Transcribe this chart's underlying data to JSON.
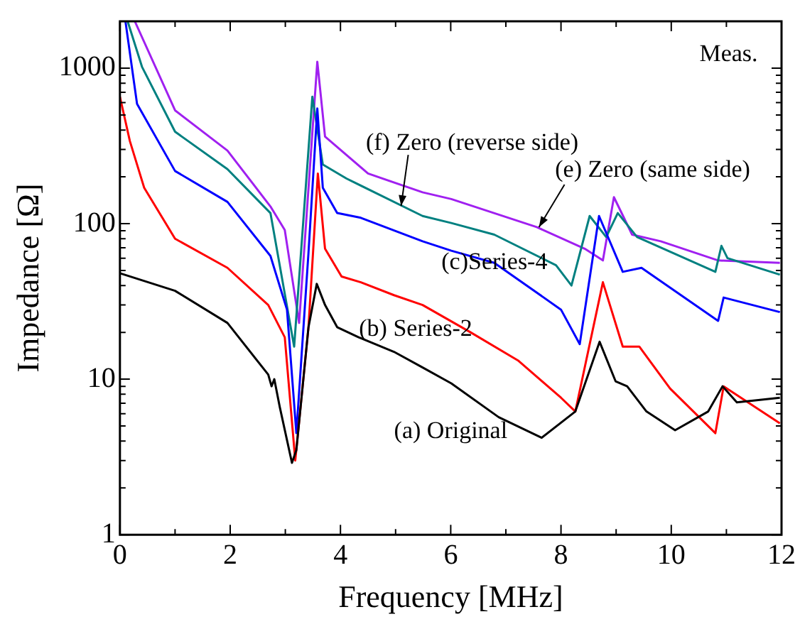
{
  "chart_data": {
    "type": "line",
    "xlabel": "Frequency [MHz]",
    "ylabel": "Impedance [Ω]",
    "log": "y",
    "grid": false,
    "legend": false,
    "marker": "none",
    "line_style": "solid",
    "xlim": [
      0,
      12
    ],
    "xticks": [
      0,
      {
        "value": 1,
        "label": null
      },
      2,
      {
        "value": 3,
        "label": null
      },
      4,
      {
        "value": 5,
        "label": null
      },
      6,
      {
        "value": 7,
        "label": null
      },
      8,
      {
        "value": 9,
        "label": null
      },
      10,
      {
        "value": 11,
        "label": null
      },
      12
    ],
    "ylim": [
      1,
      2000
    ],
    "yticks": [
      1,
      {
        "value": 2,
        "label": null
      },
      {
        "value": 3,
        "label": null
      },
      {
        "value": 4,
        "label": null
      },
      {
        "value": 5,
        "label": null
      },
      {
        "value": 6,
        "label": null
      },
      {
        "value": 7,
        "label": null
      },
      {
        "value": 8,
        "label": null
      },
      {
        "value": 9,
        "label": null
      },
      10,
      {
        "value": 20,
        "label": null
      },
      {
        "value": 30,
        "label": null
      },
      {
        "value": 40,
        "label": null
      },
      {
        "value": 50,
        "label": null
      },
      {
        "value": 60,
        "label": null
      },
      {
        "value": 70,
        "label": null
      },
      {
        "value": 80,
        "label": null
      },
      {
        "value": 90,
        "label": null
      },
      100,
      {
        "value": 200,
        "label": null
      },
      {
        "value": 300,
        "label": null
      },
      {
        "value": 400,
        "label": null
      },
      {
        "value": 500,
        "label": null
      },
      {
        "value": 600,
        "label": null
      },
      {
        "value": 700,
        "label": null
      },
      {
        "value": 800,
        "label": null
      },
      {
        "value": 900,
        "label": null
      },
      1000,
      {
        "value": 2000,
        "label": null
      }
    ],
    "series": [
      {
        "color": "#000000",
        "x": [
          0,
          1,
          1.95,
          2.69,
          2.75,
          2.8,
          2.9,
          3.12,
          3.2,
          3.42,
          3.57,
          3.72,
          3.94,
          4.33,
          4.97,
          5.49,
          6.01,
          6.87,
          7.65,
          8.26,
          8.7,
          8.99,
          9.2,
          9.55,
          10.07,
          10.67,
          10.93,
          11.19,
          11.97
        ],
        "values": [
          48,
          37,
          23,
          10.7,
          9,
          10,
          6.6,
          2.9,
          3.5,
          21.6,
          41,
          30,
          21.6,
          18.6,
          15,
          11.9,
          9.4,
          5.7,
          4.2,
          6.2,
          17.4,
          9.7,
          9,
          6.2,
          4.7,
          6.2,
          9,
          7.1,
          7.6
        ]
      },
      {
        "color": "#ff0000",
        "x": [
          0,
          0.18,
          0.44,
          1,
          1.95,
          2.69,
          2.99,
          3.18,
          3.42,
          3.59,
          3.72,
          4.02,
          4.37,
          4.97,
          5.49,
          6.36,
          7.22,
          8,
          8.26,
          8.76,
          9.12,
          9.42,
          9.98,
          10.8,
          10.95,
          11.97
        ],
        "values": [
          655,
          340,
          170,
          80,
          52,
          30,
          18.6,
          3,
          21.6,
          210,
          69,
          45.7,
          42,
          34.7,
          30,
          20,
          13.2,
          7.6,
          6.2,
          42,
          16.2,
          16.2,
          8.7,
          4.5,
          9,
          5.2
        ]
      },
      {
        "color": "#0000ff",
        "x": [
          0.1,
          0.31,
          1,
          1.95,
          2.73,
          3.03,
          3.2,
          3.42,
          3.58,
          3.68,
          3.94,
          4.37,
          5.49,
          6.01,
          6.79,
          8,
          8.34,
          8.69,
          9.12,
          9.46,
          10.85,
          10.95,
          11.97
        ],
        "values": [
          2000,
          590,
          218,
          138,
          62,
          28,
          4.5,
          65,
          550,
          170,
          117,
          109,
          77,
          67,
          56,
          28,
          16.8,
          112,
          49,
          52,
          23.7,
          33.5,
          27
        ]
      },
      {
        "color": "#008080",
        "x": [
          0.14,
          0.4,
          1,
          1.95,
          2.73,
          3.16,
          3.49,
          3.68,
          4.11,
          5.49,
          6.01,
          6.79,
          7.91,
          8.19,
          8.52,
          8.82,
          9.03,
          9.38,
          10.8,
          10.91,
          11.02,
          11.97
        ],
        "values": [
          2000,
          1020,
          390,
          224,
          117,
          16.2,
          655,
          240,
          195,
          112,
          101,
          85,
          54,
          40,
          112,
          82,
          117,
          82,
          49,
          72,
          60,
          47
        ]
      },
      {
        "color": "#a020f0",
        "x": [
          0.27,
          1,
          1.95,
          2.73,
          2.99,
          3.25,
          3.58,
          3.72,
          4.5,
          5.49,
          6.01,
          7.56,
          8.43,
          8.76,
          8.96,
          9.29,
          9.81,
          10.85,
          11.97
        ],
        "values": [
          2000,
          535,
          295,
          129,
          91,
          23,
          1100,
          363,
          210,
          159,
          144,
          95,
          69,
          58,
          148,
          85,
          77,
          58,
          56
        ]
      }
    ],
    "annotations": [
      "Meas.",
      "(a) Original",
      "(b) Series-2",
      "(c)Series-4",
      {
        "text": "(f) Zero (reverse side)",
        "x": 5.1,
        "y": 130
      },
      {
        "text": "(e) Zero (same side)",
        "x": 7.6,
        "y": 95
      }
    ]
  }
}
